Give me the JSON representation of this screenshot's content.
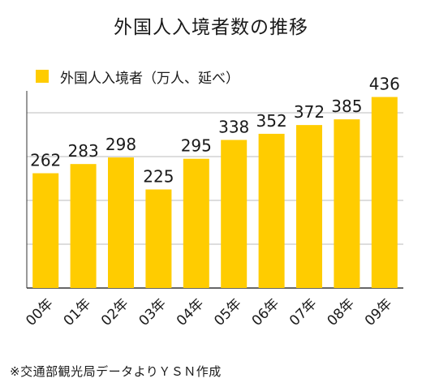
{
  "title": "外国人入境者数の推移",
  "source": "※交通部観光局データよりＹＳＮ作成",
  "colors": {
    "bar": "#FFCC00",
    "grid": "#bbbbbb",
    "axis": "#333333"
  },
  "chart_data": {
    "type": "bar",
    "title": "外国人入境者数の推移",
    "categories": [
      "00年",
      "01年",
      "02年",
      "03年",
      "04年",
      "05年",
      "06年",
      "07年",
      "08年",
      "09年"
    ],
    "series": [
      {
        "name": "外国人入境者（万人、延べ）",
        "values": [
          262,
          283,
          298,
          225,
          295,
          338,
          352,
          372,
          385,
          436
        ]
      }
    ],
    "ylim": [
      0,
      450
    ],
    "grid": true,
    "legend": "top-left",
    "data_labels": true
  }
}
